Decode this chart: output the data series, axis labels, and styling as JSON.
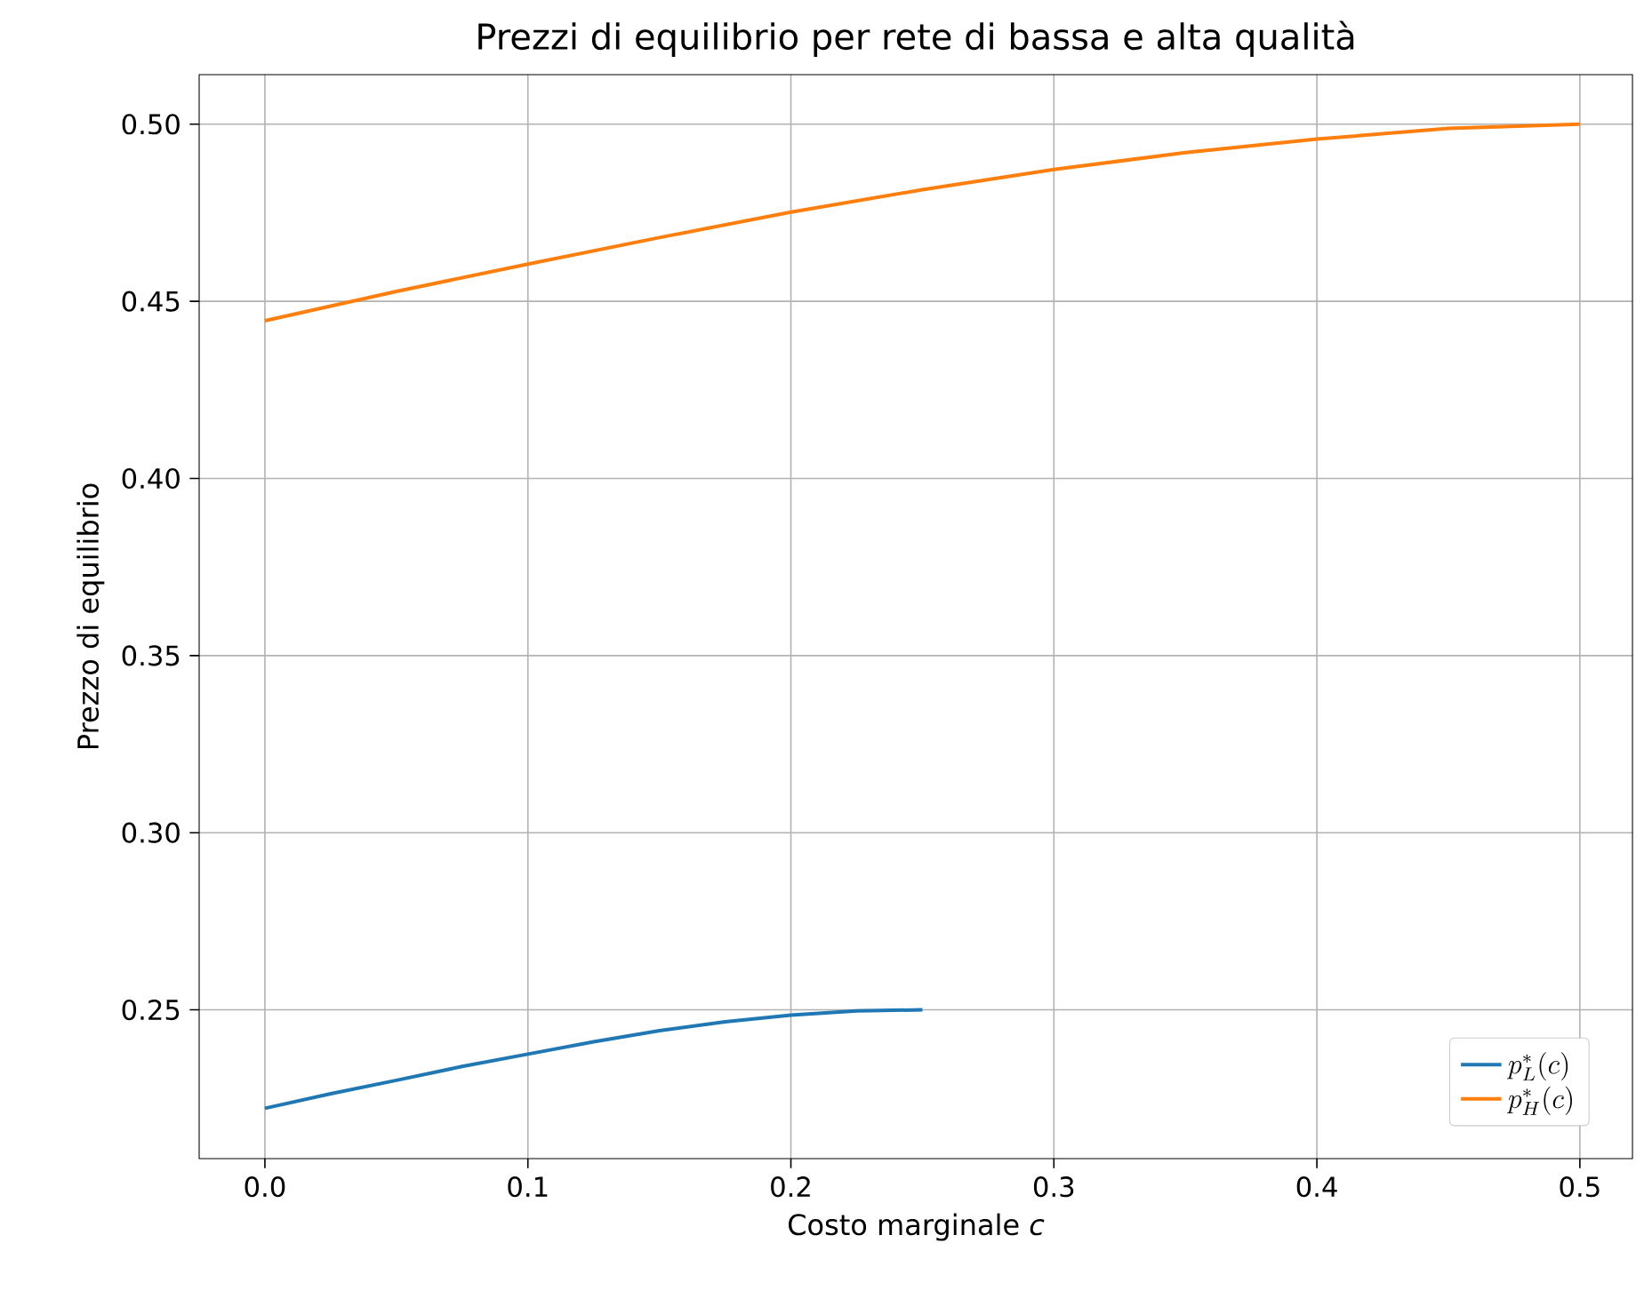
{
  "chart_data": {
    "type": "line",
    "title": "Prezzi di equilibrio per rete di bassa e alta qualità",
    "xlabel": "Costo marginale *c*",
    "ylabel": "Prezzo di equilibrio",
    "xlim": [
      -0.025,
      0.52
    ],
    "ylim": [
      0.208,
      0.514
    ],
    "xticks": [
      {
        "value": 0,
        "label": "0.0"
      },
      {
        "value": 0.1,
        "label": "0.1"
      },
      {
        "value": 0.2,
        "label": "0.2"
      },
      {
        "value": 0.3,
        "label": "0.3"
      },
      {
        "value": 0.4,
        "label": "0.4"
      },
      {
        "value": 0.5,
        "label": "0.5"
      }
    ],
    "yticks": [
      {
        "value": 0.25,
        "label": "0.25"
      },
      {
        "value": 0.3,
        "label": "0.30"
      },
      {
        "value": 0.35,
        "label": "0.35"
      },
      {
        "value": 0.4,
        "label": "0.40"
      },
      {
        "value": 0.45,
        "label": "0.45"
      },
      {
        "value": 0.5,
        "label": "0.50"
      }
    ],
    "grid": true,
    "legend": "bottom right",
    "marker": "none",
    "line_style": "solid",
    "series": [
      {
        "name": "p_L^*(c)",
        "color": "#1f77b4",
        "x": [
          0,
          0.025,
          0.05,
          0.075,
          0.1,
          0.125,
          0.15,
          0.175,
          0.2,
          0.225,
          0.25
        ],
        "values": [
          0.2222,
          0.2263,
          0.2301,
          0.234,
          0.2375,
          0.241,
          0.2441,
          0.2466,
          0.2485,
          0.2497,
          0.25
        ]
      },
      {
        "name": "p_H^*(c)",
        "color": "#ff7f0e",
        "x": [
          0,
          0.05,
          0.1,
          0.15,
          0.2,
          0.25,
          0.3,
          0.35,
          0.4,
          0.45,
          0.5
        ],
        "values": [
          0.4445,
          0.4528,
          0.4605,
          0.468,
          0.4752,
          0.4815,
          0.4872,
          0.492,
          0.4958,
          0.4988,
          0.5
        ]
      }
    ]
  }
}
